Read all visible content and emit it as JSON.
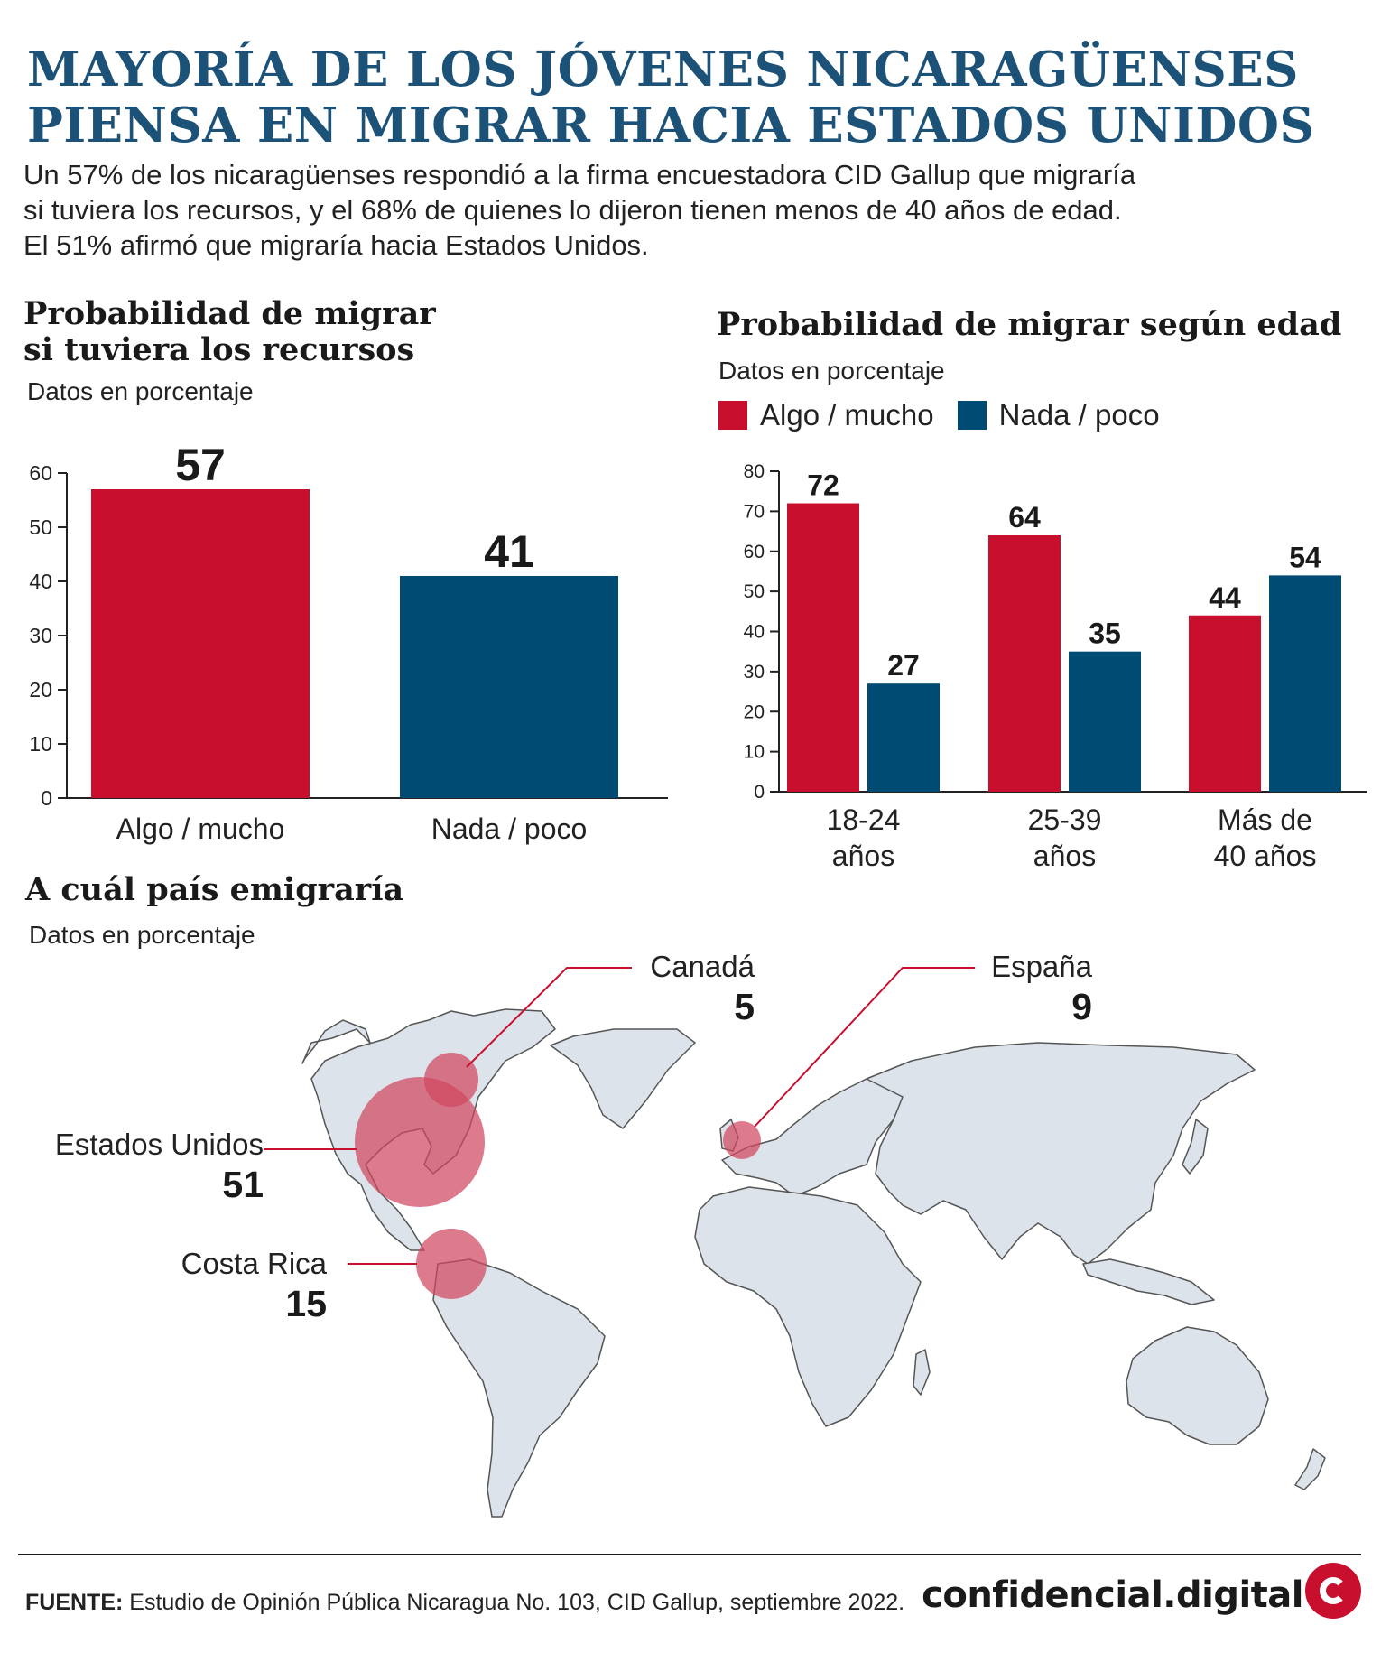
{
  "header": {
    "title_line1": "MAYORÍA DE LOS JÓVENES NICARAGÜENSES",
    "title_line2": "PIENSA EN MIGRAR HACIA ESTADOS UNIDOS",
    "subtitle_line1": "Un 57% de los nicaragüenses respondió a la firma encuestadora CID Gallup que migraría",
    "subtitle_line2": "si tuviera los recursos, y el 68% de quienes lo dijeron tienen menos de 40 años de edad.",
    "subtitle_line3": "El 51% afirmó que migraría hacia Estados Unidos."
  },
  "colors": {
    "red": "#c8102e",
    "blue": "#004b74",
    "title_blue": "#1c5277",
    "land": "#dde3ea",
    "bubble": "#d0475f"
  },
  "chart_data": [
    {
      "type": "bar",
      "title_line1": "Probabilidad de migrar",
      "title_line2": "si tuviera los recursos",
      "subtitle": "Datos en porcentaje",
      "categories": [
        "Algo / mucho",
        "Nada / poco"
      ],
      "values": [
        57,
        41
      ],
      "value_labels": [
        "57",
        "41"
      ],
      "bar_colors": [
        "#c8102e",
        "#004b74"
      ],
      "ylim": [
        0,
        60
      ],
      "yticks": [
        0,
        10,
        20,
        30,
        40,
        50,
        60
      ],
      "grid": false
    },
    {
      "type": "bar",
      "title": "Probabilidad de migrar según edad",
      "subtitle": "Datos en porcentaje",
      "categories": [
        [
          "18-24",
          "años"
        ],
        [
          "25-39",
          "años"
        ],
        [
          "Más de",
          "40 años"
        ]
      ],
      "series": [
        {
          "name": "Algo / mucho",
          "color": "#c8102e",
          "values": [
            72,
            64,
            44
          ]
        },
        {
          "name": "Nada / poco",
          "color": "#004b74",
          "values": [
            27,
            35,
            54
          ]
        }
      ],
      "ylim": [
        0,
        80
      ],
      "yticks": [
        0,
        10,
        20,
        30,
        40,
        50,
        60,
        70,
        80
      ],
      "legend": "top-left",
      "grid": false
    }
  ],
  "map": {
    "title": "A cuál país emigraría",
    "subtitle": "Datos en porcentaje",
    "countries": [
      {
        "name": "Canadá",
        "value": "5"
      },
      {
        "name": "España",
        "value": "9"
      },
      {
        "name": "Estados Unidos",
        "value": "51"
      },
      {
        "name": "Costa Rica",
        "value": "15"
      }
    ]
  },
  "footer": {
    "source_label": "FUENTE:",
    "source_text": " Estudio de Opinión Pública Nicaragua No. 103, CID Gallup, septiembre 2022.",
    "brand": "confidencial.digital"
  }
}
